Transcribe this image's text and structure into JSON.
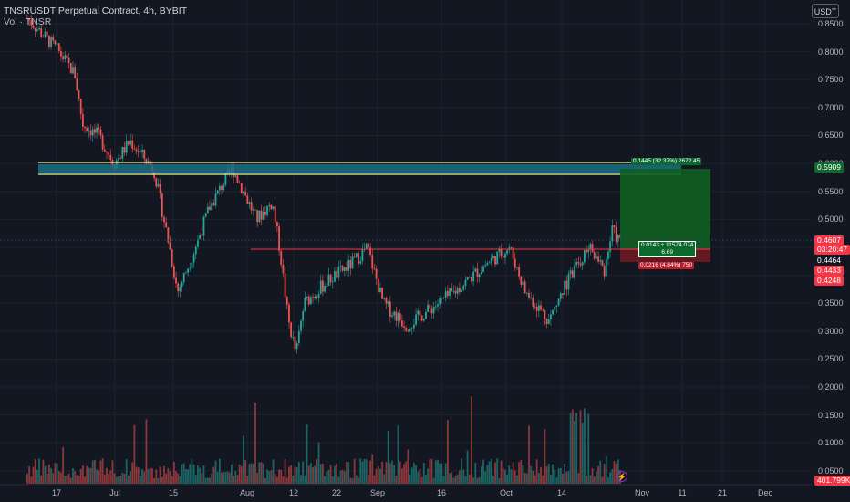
{
  "header": {
    "title": "TNSRUSDT Perpetual Contract, 4h, BYBIT",
    "volume_label": "Vol · TNSR",
    "currency": "USDT"
  },
  "colors": {
    "background": "#131722",
    "up": "#26a69a",
    "down": "#ef5350",
    "zone_fill": "#1d6f84",
    "zone_line": "#e7f59a",
    "entry_line": "#f23645",
    "target_fill": "#0f5f22",
    "stop_fill": "#6e1a22"
  },
  "price_axis": {
    "ticks": [
      "0.8500",
      "0.8000",
      "0.7500",
      "0.7000",
      "0.6500",
      "0.6000",
      "0.5500",
      "0.5000",
      "0.4500",
      "0.4000",
      "0.3500",
      "0.3000",
      "0.2500",
      "0.2000",
      "0.1500",
      "0.1000",
      "0.0500"
    ]
  },
  "time_axis": {
    "ticks": [
      "17",
      "Jul",
      "15",
      "Aug",
      "12",
      "22",
      "Sep",
      "16",
      "Oct",
      "14",
      "Nov",
      "11",
      "21",
      "Dec"
    ]
  },
  "price_tags": {
    "target": "0.5909",
    "last": "0.4607",
    "countdown": "03:20:47",
    "entry": "0.4464",
    "tag_433": "0.4433",
    "stop": "0.4248",
    "volume": "401.799K"
  },
  "position": {
    "target_label": "0.1445 (32.37%) 2672.45",
    "entry_label_1": "0.0143 ÷ 11574.074",
    "entry_label_2": "6.69",
    "stop_label": "0.0216 (4.84%) 750"
  },
  "icons": [
    "lightning-icon"
  ],
  "chart_data": {
    "type": "candlestick",
    "title": "TNSRUSDT Perpetual Contract, 4h, BYBIT",
    "ylim": [
      0.0,
      0.87
    ],
    "price_path": [
      [
        0,
        0.86
      ],
      [
        0.04,
        0.8
      ],
      [
        0.06,
        0.76
      ],
      [
        0.07,
        0.67
      ],
      [
        0.09,
        0.65
      ],
      [
        0.11,
        0.6
      ],
      [
        0.13,
        0.64
      ],
      [
        0.16,
        0.59
      ],
      [
        0.18,
        0.45
      ],
      [
        0.19,
        0.37
      ],
      [
        0.21,
        0.44
      ],
      [
        0.23,
        0.52
      ],
      [
        0.25,
        0.57
      ],
      [
        0.26,
        0.59
      ],
      [
        0.28,
        0.53
      ],
      [
        0.29,
        0.5
      ],
      [
        0.31,
        0.53
      ],
      [
        0.32,
        0.44
      ],
      [
        0.33,
        0.32
      ],
      [
        0.34,
        0.26
      ],
      [
        0.35,
        0.35
      ],
      [
        0.38,
        0.39
      ],
      [
        0.41,
        0.42
      ],
      [
        0.43,
        0.45
      ],
      [
        0.45,
        0.35
      ],
      [
        0.48,
        0.31
      ],
      [
        0.51,
        0.34
      ],
      [
        0.54,
        0.37
      ],
      [
        0.58,
        0.42
      ],
      [
        0.61,
        0.45
      ],
      [
        0.63,
        0.37
      ],
      [
        0.66,
        0.32
      ],
      [
        0.68,
        0.38
      ],
      [
        0.71,
        0.45
      ],
      [
        0.73,
        0.41
      ],
      [
        0.74,
        0.48
      ],
      [
        0.75,
        0.46
      ]
    ],
    "horizontal_levels": {
      "zone_top": 0.6,
      "zone_bottom": 0.58,
      "entry_line": 0.4464
    }
  }
}
